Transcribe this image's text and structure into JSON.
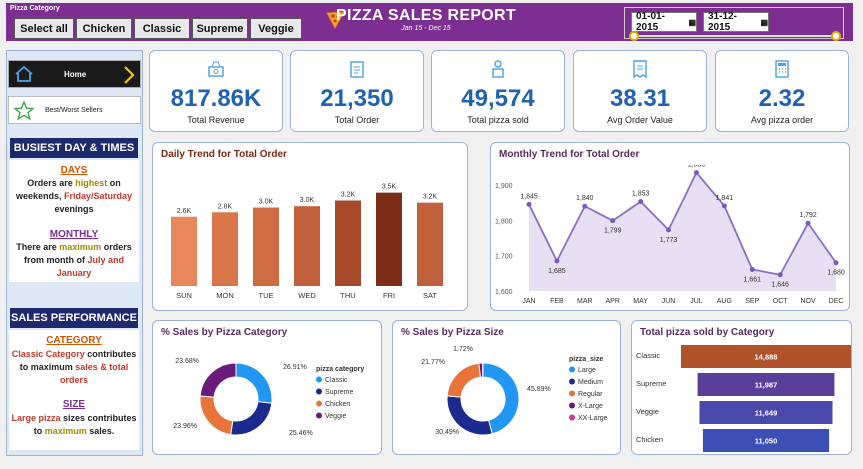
{
  "header": {
    "slicer_title": "Pizza Category",
    "slicer_options": [
      "Select all",
      "Chicken",
      "Classic",
      "Supreme",
      "Veggie"
    ],
    "title": "PIZZA SALES REPORT",
    "subtitle": "Jan 15  -  Dec 15",
    "date_start": "01-01-2015",
    "date_end": "31-12-2015"
  },
  "sidebar": {
    "home_label": "Home",
    "best_worst_label": "Best/Worst Sellers",
    "busiest_title": "BUSIEST DAY & TIMES",
    "days_heading": "DAYS",
    "monthly_heading": "MONTHLY",
    "sales_perf_title": "SALES PERFORMANCE",
    "category_heading": "CATEGORY",
    "size_heading": "SIZE"
  },
  "colors": {
    "brand": "#7d2f91",
    "navy": "#1f2a6e",
    "kpi": "#1f62b0",
    "accent_blue": "#2196f3"
  },
  "kpis": [
    {
      "value": "817.86K",
      "label": "Total Revenue",
      "icon": "money-icon"
    },
    {
      "value": "21,350",
      "label": "Total Order",
      "icon": "clipboard-icon"
    },
    {
      "value": "49,574",
      "label": "Total pizza sold",
      "icon": "delivery-icon"
    },
    {
      "value": "38.31",
      "label": "Avg Order Value",
      "icon": "receipt-icon"
    },
    {
      "value": "2.32",
      "label": "Avg pizza order",
      "icon": "calculator-icon"
    }
  ],
  "chart_data": [
    {
      "type": "bar",
      "title": "Daily Trend for Total Order",
      "categories": [
        "SUN",
        "MON",
        "TUE",
        "WED",
        "THU",
        "FRI",
        "SAT"
      ],
      "values": [
        2624,
        2794,
        2973,
        3024,
        3239,
        3538,
        3158
      ],
      "data_labels": [
        "2.6K",
        "2.8K",
        "3.0K",
        "3.0K",
        "3.2K",
        "3.5K",
        "3.2K"
      ],
      "colors": [
        "#e8875a",
        "#d9774a",
        "#cd6b42",
        "#c0603b",
        "#a64a2a",
        "#7c2e18",
        "#c0603b"
      ]
    },
    {
      "type": "area",
      "title": "Monthly Trend for Total Order",
      "categories": [
        "JAN",
        "FEB",
        "MAR",
        "APR",
        "MAY",
        "JUN",
        "JUL",
        "AUG",
        "SEP",
        "OCT",
        "NOV",
        "DEC"
      ],
      "values": [
        1845,
        1685,
        1840,
        1799,
        1853,
        1773,
        1935,
        1841,
        1661,
        1646,
        1792,
        1680
      ],
      "yticks": [
        "1,900",
        "1,800",
        "1,700",
        "1,600"
      ],
      "ylim": [
        1600,
        1950
      ]
    },
    {
      "type": "pie",
      "title": "% Sales by Pizza Category",
      "legend_title": "pizza category",
      "labels": [
        "Classic",
        "Supreme",
        "Chicken",
        "Veggie"
      ],
      "values": [
        26.91,
        25.46,
        23.96,
        23.68
      ],
      "value_labels": [
        "26.91%",
        "25.46%",
        "23.96%",
        "23.68%"
      ],
      "colors": [
        "#2196f3",
        "#1b2a8c",
        "#e8743b",
        "#6a1b7a"
      ]
    },
    {
      "type": "pie",
      "title": "% Sales by Pizza Size",
      "legend_title": "pizza_size",
      "labels": [
        "Large",
        "Medium",
        "Regular",
        "X-Large",
        "XX-Large"
      ],
      "values": [
        45.89,
        30.49,
        21.77,
        1.72,
        0.12
      ],
      "value_labels": [
        "45.89%",
        "30.49%",
        "21.77%",
        "1.72%",
        ""
      ],
      "colors": [
        "#2196f3",
        "#1b2a8c",
        "#e8743b",
        "#6a1b7a",
        "#d63a8b"
      ]
    },
    {
      "type": "bar",
      "orientation": "horizontal",
      "title": "Total pizza sold by Category",
      "categories": [
        "Classic",
        "Supreme",
        "Veggie",
        "Chicken"
      ],
      "values": [
        14888,
        11987,
        11649,
        11050
      ],
      "data_labels": [
        "14,888",
        "11,987",
        "11,649",
        "11,050"
      ],
      "colors": [
        "#b0532a",
        "#5a3f9a",
        "#4a48a8",
        "#3b4fb5"
      ]
    }
  ]
}
